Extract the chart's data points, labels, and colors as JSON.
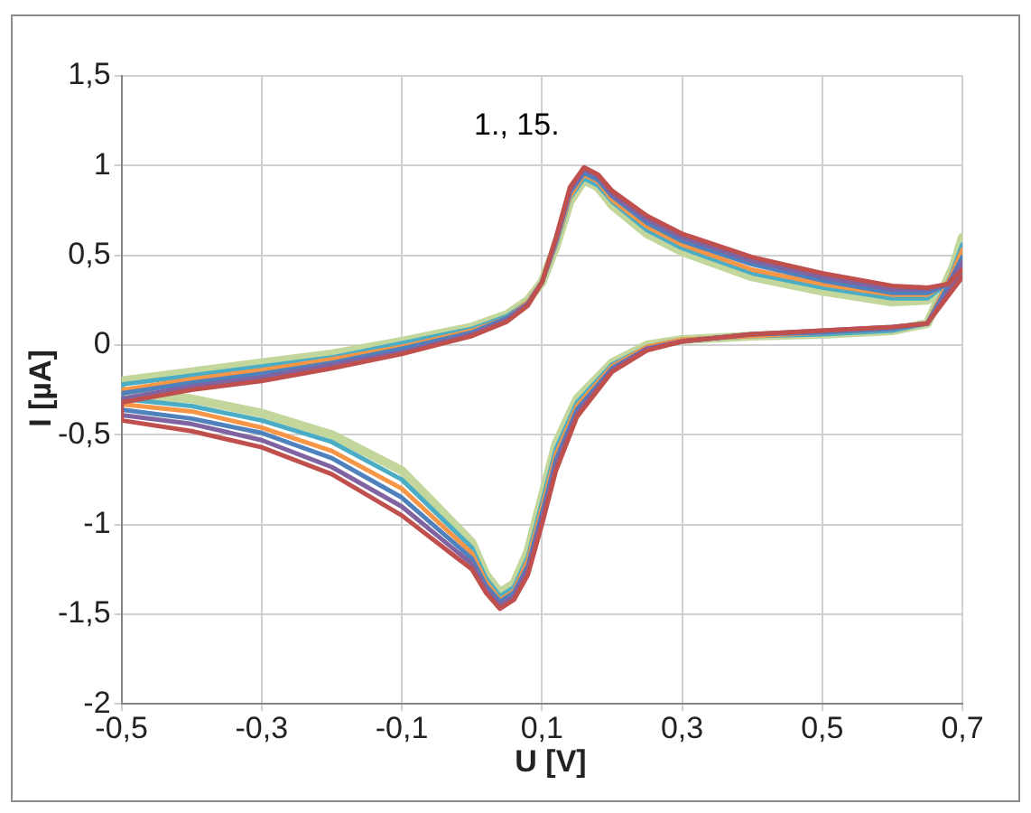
{
  "chart_data": {
    "type": "line",
    "xlabel": "U [V]",
    "ylabel": "I [µA]",
    "annotations": [
      "1., 15."
    ],
    "x": [
      0.7,
      0.65,
      0.6,
      0.5,
      0.4,
      0.3,
      0.25,
      0.2,
      0.15,
      0.12,
      0.1,
      0.08,
      0.06,
      0.04,
      0.02,
      0,
      -0.1,
      -0.2,
      -0.3,
      -0.4,
      -0.5,
      -0.5,
      -0.4,
      -0.3,
      -0.2,
      -0.1,
      0,
      0.05,
      0.08,
      0.1,
      0.12,
      0.14,
      0.16,
      0.18,
      0.2,
      0.25,
      0.3,
      0.4,
      0.5,
      0.6,
      0.65,
      0.68,
      0.7
    ],
    "series": [
      {
        "color": "#c0504d",
        "values": [
          0.38,
          0.12,
          0.1,
          0.08,
          0.06,
          0.02,
          -0.03,
          -0.15,
          -0.4,
          -0.7,
          -1,
          -1.28,
          -1.42,
          -1.47,
          -1.38,
          -1.25,
          -0.95,
          -0.72,
          -0.57,
          -0.48,
          -0.42,
          -0.32,
          -0.25,
          -0.2,
          -0.13,
          -0.05,
          0.05,
          0.13,
          0.22,
          0.35,
          0.6,
          0.88,
          0.99,
          0.95,
          0.86,
          0.72,
          0.62,
          0.49,
          0.4,
          0.33,
          0.32,
          0.34,
          0.42
        ]
      },
      {
        "color": "#8064a2",
        "values": [
          0.42,
          0.12,
          0.1,
          0.08,
          0.06,
          0.02,
          -0.02,
          -0.14,
          -0.38,
          -0.67,
          -0.97,
          -1.25,
          -1.4,
          -1.45,
          -1.36,
          -1.22,
          -0.9,
          -0.68,
          -0.53,
          -0.44,
          -0.39,
          -0.3,
          -0.23,
          -0.18,
          -0.11,
          -0.04,
          0.06,
          0.14,
          0.23,
          0.35,
          0.59,
          0.86,
          0.98,
          0.94,
          0.84,
          0.7,
          0.6,
          0.47,
          0.38,
          0.31,
          0.31,
          0.34,
          0.46
        ]
      },
      {
        "color": "#4f81bd",
        "values": [
          0.47,
          0.12,
          0.09,
          0.07,
          0.06,
          0.02,
          -0.02,
          -0.13,
          -0.36,
          -0.64,
          -0.94,
          -1.23,
          -1.38,
          -1.43,
          -1.34,
          -1.19,
          -0.85,
          -0.63,
          -0.49,
          -0.41,
          -0.36,
          -0.27,
          -0.21,
          -0.16,
          -0.1,
          -0.02,
          0.07,
          0.15,
          0.23,
          0.35,
          0.58,
          0.85,
          0.96,
          0.92,
          0.83,
          0.68,
          0.58,
          0.45,
          0.36,
          0.29,
          0.29,
          0.34,
          0.49
        ]
      },
      {
        "color": "#f79646",
        "values": [
          0.51,
          0.12,
          0.09,
          0.07,
          0.05,
          0.03,
          -0.01,
          -0.12,
          -0.34,
          -0.61,
          -0.91,
          -1.2,
          -1.37,
          -1.42,
          -1.32,
          -1.16,
          -0.8,
          -0.59,
          -0.46,
          -0.37,
          -0.33,
          -0.25,
          -0.19,
          -0.14,
          -0.08,
          -0.01,
          0.08,
          0.15,
          0.24,
          0.35,
          0.57,
          0.83,
          0.95,
          0.91,
          0.81,
          0.66,
          0.56,
          0.42,
          0.34,
          0.28,
          0.28,
          0.35,
          0.53
        ]
      },
      {
        "color": "#4bacc6",
        "values": [
          0.52,
          0.12,
          0.08,
          0.06,
          0.05,
          0.03,
          -0.01,
          -0.11,
          -0.32,
          -0.58,
          -0.88,
          -1.18,
          -1.35,
          -1.4,
          -1.3,
          -1.13,
          -0.75,
          -0.54,
          -0.42,
          -0.34,
          -0.3,
          -0.22,
          -0.17,
          -0.12,
          -0.07,
          0.01,
          0.09,
          0.16,
          0.24,
          0.35,
          0.56,
          0.82,
          0.93,
          0.89,
          0.8,
          0.64,
          0.54,
          0.4,
          0.32,
          0.26,
          0.26,
          0.35,
          0.56
        ]
      },
      {
        "color": "#c3d69b",
        "values": [
          0.55,
          0.12,
          0.08,
          0.06,
          0.05,
          0.03,
          0,
          -0.1,
          -0.3,
          -0.55,
          -0.85,
          -1.15,
          -1.33,
          -1.38,
          -1.28,
          -1.1,
          -0.7,
          -0.5,
          -0.38,
          -0.3,
          -0.27,
          -0.2,
          -0.15,
          -0.1,
          -0.05,
          0.02,
          0.1,
          0.17,
          0.25,
          0.35,
          0.55,
          0.8,
          0.92,
          0.88,
          0.78,
          0.62,
          0.52,
          0.38,
          0.3,
          0.24,
          0.25,
          0.35,
          0.6
        ]
      }
    ],
    "xlim": [
      -0.5,
      0.7
    ],
    "xticks": [
      {
        "value": -0.5,
        "label": "-0,5"
      },
      {
        "value": -0.3,
        "label": "-0,3"
      },
      {
        "value": -0.1,
        "label": "-0,1"
      },
      {
        "value": 0.1,
        "label": "0,1"
      },
      {
        "value": 0.3,
        "label": "0,3"
      },
      {
        "value": 0.5,
        "label": "0,5"
      },
      {
        "value": 0.7,
        "label": "0,7"
      }
    ],
    "ylim": [
      -2,
      1.5
    ],
    "yticks": [
      {
        "value": -2,
        "label": "-2"
      },
      {
        "value": -1.5,
        "label": "-1,5"
      },
      {
        "value": -1,
        "label": "-1"
      },
      {
        "value": -0.5,
        "label": "-0,5"
      },
      {
        "value": 0,
        "label": "0"
      },
      {
        "value": 0.5,
        "label": "0,5"
      },
      {
        "value": 1,
        "label": "1"
      },
      {
        "value": 1.5,
        "label": "1,5"
      }
    ],
    "grid": true,
    "marker": "none",
    "line_style": "solid",
    "legend": false
  }
}
